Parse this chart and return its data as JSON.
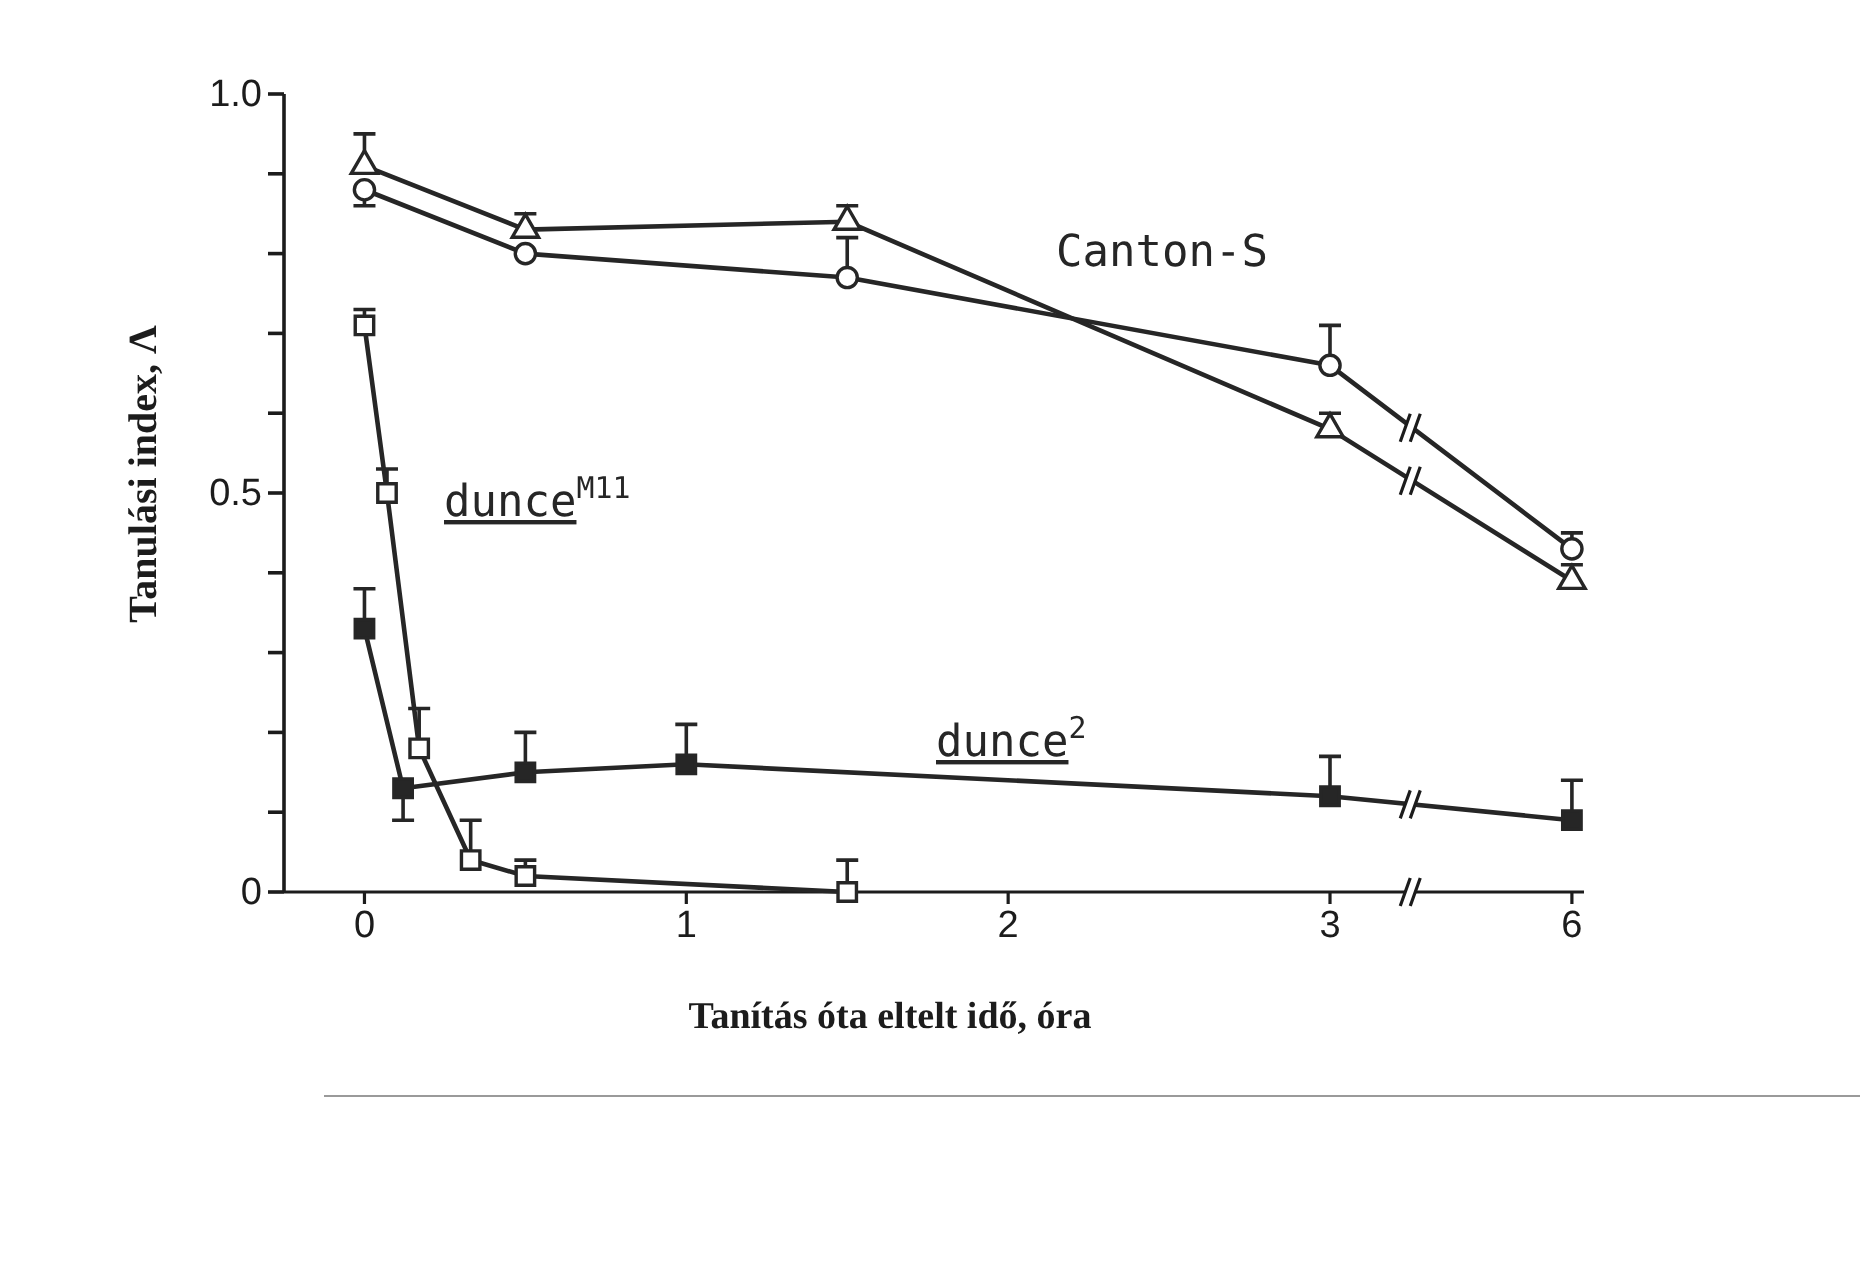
{
  "chart_data": [
    {
      "type": "line",
      "xlabel": "Tanítás óta eltelt idő, óra",
      "ylabel": "Tanulási index, Λ",
      "xlim": [
        -0.25,
        3
      ],
      "xticks": [
        0,
        1,
        2
      ],
      "ylim": [
        0,
        1
      ],
      "yticks": [
        0,
        {
          "value": 0.1,
          "label": null
        },
        {
          "value": 0.2,
          "label": null
        },
        {
          "value": 0.3,
          "label": null
        },
        {
          "value": 0.4,
          "label": null
        },
        0.5,
        {
          "value": 0.6,
          "label": null
        },
        {
          "value": 0.7,
          "label": null
        },
        {
          "value": 0.8,
          "label": null
        },
        {
          "value": 0.9,
          "label": null
        },
        {
          "value": 1,
          "label": "1.0"
        }
      ],
      "series": [
        {
          "name": "Canton-S",
          "color": "#262626",
          "marker": "triangle",
          "x": [
            0,
            0.5,
            1.5,
            3
          ],
          "values": [
            0.91,
            0.83,
            0.84,
            0.58
          ],
          "errors": [
            [
              0.91,
              0.95
            ],
            [
              0.83,
              0.85
            ],
            [
              0.84,
              0.86
            ],
            [
              0.58,
              0.6
            ]
          ]
        },
        {
          "color": "#262626",
          "marker": "circle",
          "x": [
            0,
            0.5,
            1.5,
            3
          ],
          "values": [
            0.88,
            0.8,
            0.77,
            0.66
          ],
          "errors": [
            [
              0.86,
              0.88
            ],
            null,
            [
              0.77,
              0.82
            ],
            [
              0.66,
              0.71
            ]
          ]
        },
        {
          "name": "dunce$^{M11}$",
          "color": "#262626",
          "marker": "square",
          "x": [
            0,
            0.07,
            0.17,
            0.33,
            0.5,
            1.5
          ],
          "values": [
            0.71,
            0.5,
            0.18,
            0.04,
            0.02,
            0
          ],
          "errors": [
            [
              0.71,
              0.73
            ],
            [
              0.5,
              0.53
            ],
            [
              0.18,
              0.23
            ],
            [
              0.04,
              0.09
            ],
            [
              0.02,
              0.04
            ],
            [
              0,
              0.04
            ]
          ]
        },
        {
          "name": "dunce$^{2}$",
          "color": "#262626",
          "marker": "square",
          "x": [
            0,
            0.12,
            0.5,
            1,
            3
          ],
          "values": [
            0.33,
            0.13,
            0.15,
            0.16,
            0.12
          ],
          "errors": [
            [
              0.33,
              0.38
            ],
            [
              0.09,
              0.13
            ],
            [
              0.15,
              0.2
            ],
            [
              0.16,
              0.21
            ],
            [
              0.12,
              0.17
            ]
          ]
        }
      ]
    },
    {
      "type": "line",
      "xlim": [
        3,
        6.15
      ],
      "xticks": [
        3,
        6
      ],
      "ylim": [
        0,
        1
      ],
      "tick_labels": "x",
      "series": [
        {
          "color": "#262626",
          "x": [
            3,
            6
          ],
          "values": [
            0.58,
            0.39
          ]
        },
        {
          "color": "#262626",
          "x": [
            3,
            6
          ],
          "values": [
            0.66,
            0.43
          ]
        },
        {
          "color": "#262626",
          "x": [
            3,
            6
          ],
          "values": [
            0.12,
            0.09
          ]
        },
        {
          "type": "scatter",
          "color": "#262626",
          "marker": "triangle",
          "x": [
            6
          ],
          "values": [
            0.39
          ],
          "errors": [
            [
              0.39,
              0.41
            ]
          ]
        },
        {
          "type": "scatter",
          "color": "#262626",
          "marker": "circle",
          "x": [
            6
          ],
          "values": [
            0.43
          ],
          "errors": [
            [
              0.43,
              0.45
            ]
          ]
        },
        {
          "type": "scatter",
          "color": "#262626",
          "marker": "square",
          "x": [
            6
          ],
          "values": [
            0.09
          ],
          "errors": [
            [
              0.09,
              0.14
            ]
          ]
        }
      ]
    }
  ]
}
